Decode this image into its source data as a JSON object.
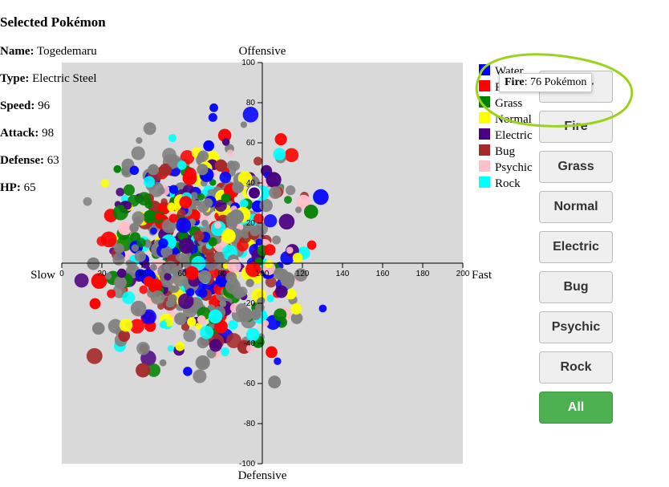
{
  "selected": {
    "heading": "Selected Pokémon",
    "fields": [
      {
        "label": "Name:",
        "value": "Togedemaru"
      },
      {
        "label": "Type:",
        "value": "Electric Steel"
      },
      {
        "label": "Speed:",
        "value": "96"
      },
      {
        "label": "Attack:",
        "value": "98"
      },
      {
        "label": "Defense:",
        "value": "63"
      },
      {
        "label": "HP:",
        "value": "65"
      }
    ]
  },
  "chart_data": {
    "type": "scatter",
    "title": "",
    "xlabel_left": "Slow",
    "xlabel_right": "Fast",
    "ylabel_top": "Offensive",
    "ylabel_bottom": "Defensive",
    "xlim": [
      0,
      200
    ],
    "ylim": [
      -100,
      100
    ],
    "x_ticks": [
      0,
      20,
      40,
      60,
      80,
      100,
      120,
      140,
      160,
      180,
      200
    ],
    "y_ticks": [
      -100,
      -80,
      -60,
      -40,
      -20,
      0,
      20,
      40,
      60,
      80,
      100
    ],
    "plot_bg": "#d9d9d9",
    "legend": [
      {
        "name": "Water",
        "color": "#0000ff"
      },
      {
        "name": "Fire",
        "color": "#ff0000"
      },
      {
        "name": "Grass",
        "color": "#008000"
      },
      {
        "name": "Normal",
        "color": "#ffff00"
      },
      {
        "name": "Electric",
        "color": "#4b0082"
      },
      {
        "name": "Bug",
        "color": "#a52a2a"
      },
      {
        "name": "Psychic",
        "color": "#ffc0cb"
      },
      {
        "name": "Rock",
        "color": "#00ffff"
      }
    ],
    "other_color": "#808080",
    "highlighted_points": [
      {
        "x": 96,
        "y": 35,
        "color": "#4b0082"
      }
    ],
    "cluster": {
      "center": [
        70,
        5
      ],
      "count": 700
    }
  },
  "tooltip": {
    "type": "Fire",
    "text": ": 76 Pokémon"
  },
  "annotation_color": "#9ad31e",
  "buttons": [
    "Water",
    "Fire",
    "Grass",
    "Normal",
    "Electric",
    "Bug",
    "Psychic",
    "Rock",
    "All"
  ],
  "active_button": "All",
  "active_color": "#4caf50"
}
